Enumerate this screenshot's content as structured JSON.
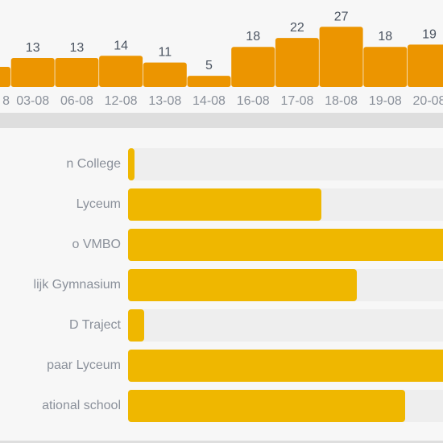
{
  "chart_data": [
    {
      "type": "bar",
      "categories": [
        "",
        "03-08",
        "06-08",
        "12-08",
        "13-08",
        "14-08",
        "16-08",
        "17-08",
        "18-08",
        "19-08",
        "20-08"
      ],
      "first_category_visible_text": "8",
      "values": [
        null,
        13,
        13,
        14,
        11,
        5,
        18,
        22,
        27,
        18,
        19
      ],
      "ylim": [
        0,
        30
      ],
      "color": "#ec9500",
      "value_label_color": "#4a5360",
      "tick_label_color": "#8a909a"
    },
    {
      "type": "bar",
      "orientation": "horizontal",
      "categories": [
        "n College",
        "Lyceum",
        "o VMBO",
        "lijk Gymnasium",
        "D Traject",
        "paar Lyceum",
        "ational school"
      ],
      "fill_fraction": [
        0.02,
        0.6,
        1.0,
        0.71,
        0.05,
        1.0,
        0.86
      ],
      "color": "#efb700",
      "track_color": "#eeeeee"
    }
  ]
}
